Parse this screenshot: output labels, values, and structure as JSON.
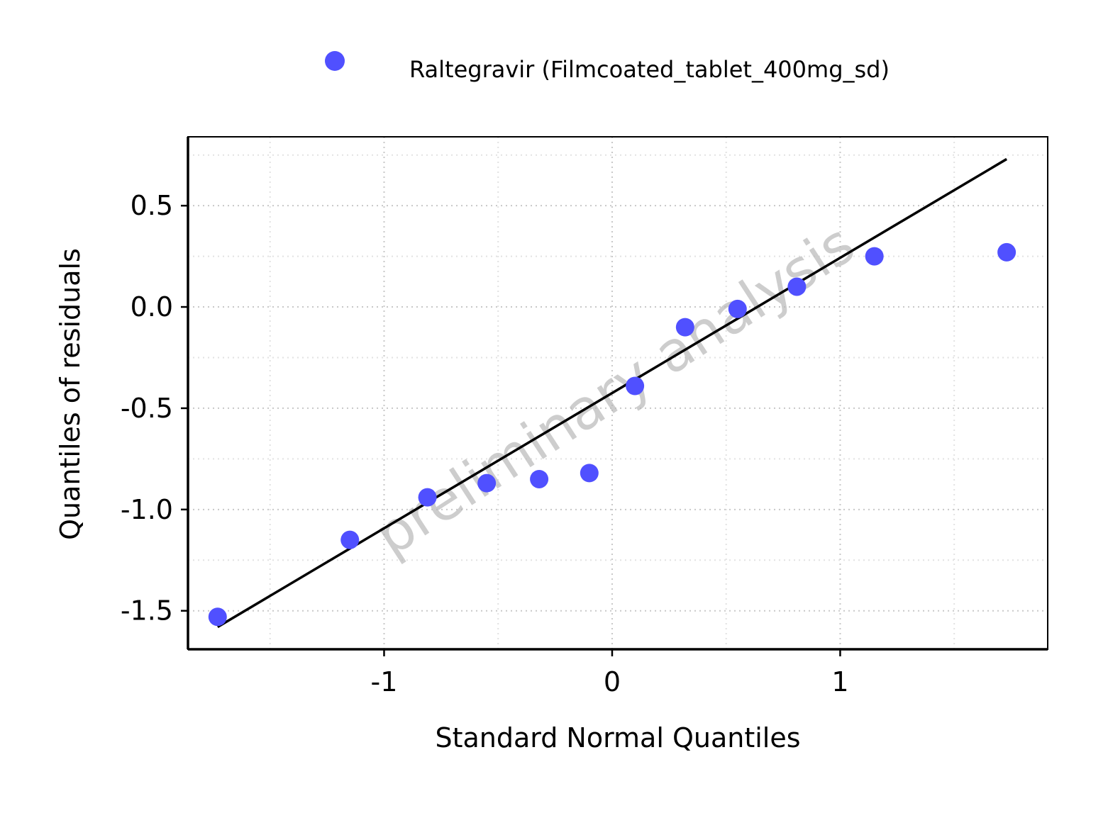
{
  "chart_data": {
    "type": "scatter",
    "xlabel": "Standard Normal Quantiles",
    "ylabel": "Quantiles of residuals",
    "xlim": [
      -1.86,
      1.91
    ],
    "ylim": [
      -1.69,
      0.84
    ],
    "x_ticks": [
      -1,
      0,
      1
    ],
    "x_tick_labels": [
      "-1",
      "0",
      "1"
    ],
    "y_ticks": [
      -1.5,
      -1.0,
      -0.5,
      0.0,
      0.5
    ],
    "y_tick_labels": [
      "-1.5",
      "-1.0",
      "-0.5",
      "0.0",
      "0.5"
    ],
    "grid": true,
    "legend_position": "top",
    "watermark": "preliminary analysis",
    "series": [
      {
        "name": "Raltegravir (Filmcoated_tablet_400mg_sd)",
        "color": "#5050ff",
        "x": [
          -1.73,
          -1.15,
          -0.81,
          -0.55,
          -0.32,
          -0.1,
          0.1,
          0.32,
          0.55,
          0.81,
          1.15,
          1.73
        ],
        "y": [
          -1.53,
          -1.15,
          -0.94,
          -0.87,
          -0.85,
          -0.82,
          -0.39,
          -0.1,
          -0.01,
          0.1,
          0.25,
          0.27
        ]
      }
    ],
    "reference_line": {
      "color": "#000000",
      "x": [
        -1.73,
        1.73
      ],
      "y": [
        -1.58,
        0.73
      ]
    }
  }
}
